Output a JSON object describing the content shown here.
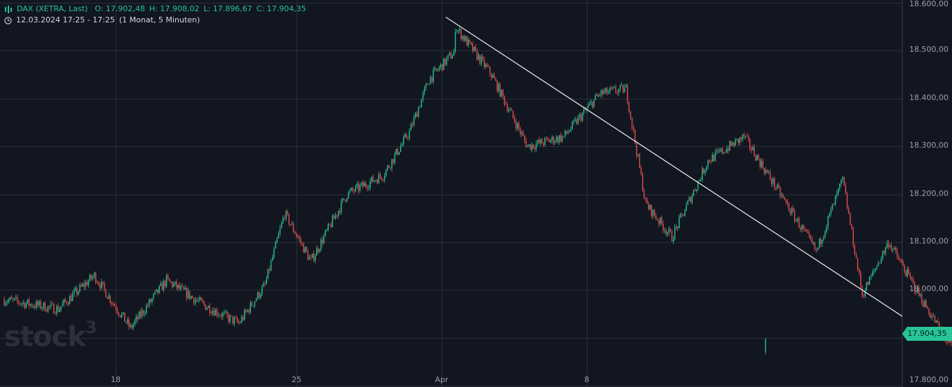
{
  "legend": {
    "instrument": "DAX (XETRA, Last)",
    "open": "O: 17.902,48",
    "high": "H: 17.908,02",
    "low": "L: 17.896,67",
    "close": "C: 17.904,35",
    "time_range": "12.03.2024 17:25 - 17:25",
    "interval": "(1 Monat, 5 Minuten)"
  },
  "watermark": {
    "text": "stock",
    "sup": "3"
  },
  "price_tag": "17.904,35",
  "colors": {
    "background": "#121620",
    "up": "#27c497",
    "down": "#e5504f",
    "grid": "#2a2f3a",
    "trendline": "#e8e8e8"
  },
  "chart_data": {
    "type": "candlestick",
    "x_tick_labels": [
      "18",
      "25",
      "Apr",
      "8"
    ],
    "y_tick_labels": [
      "18.600,00",
      "18.500,00",
      "18.400,00",
      "18.300,00",
      "18.200,00",
      "18.100,00",
      "18.000,00",
      "17.800,00"
    ],
    "ylim": [
      17800,
      18600
    ],
    "last_price": 17904.35,
    "trendline": [
      {
        "date": "2024-04-02",
        "price": 18570
      },
      {
        "date": "2024-04-26",
        "price": 17945
      }
    ],
    "trajectory": [
      {
        "date": "2024-03-13",
        "price": 17980
      },
      {
        "date": "2024-03-14",
        "price": 17960
      },
      {
        "date": "2024-03-15",
        "price": 18030
      },
      {
        "date": "2024-03-18",
        "price": 17920
      },
      {
        "date": "2024-03-19",
        "price": 18020
      },
      {
        "date": "2024-03-20",
        "price": 17970
      },
      {
        "date": "2024-03-21",
        "price": 17930
      },
      {
        "date": "2024-03-22",
        "price": 18010
      },
      {
        "date": "2024-03-22",
        "price": 18160
      },
      {
        "date": "2024-03-25",
        "price": 18060
      },
      {
        "date": "2024-03-26",
        "price": 18200
      },
      {
        "date": "2024-03-27",
        "price": 18240
      },
      {
        "date": "2024-03-28",
        "price": 18330
      },
      {
        "date": "2024-03-28",
        "price": 18440
      },
      {
        "date": "2024-04-01",
        "price": 18500
      },
      {
        "date": "2024-04-02",
        "price": 18550
      },
      {
        "date": "2024-04-03",
        "price": 18450
      },
      {
        "date": "2024-04-04",
        "price": 18300
      },
      {
        "date": "2024-04-05",
        "price": 18320
      },
      {
        "date": "2024-04-08",
        "price": 18410
      },
      {
        "date": "2024-04-09",
        "price": 18420
      },
      {
        "date": "2024-04-09",
        "price": 18180
      },
      {
        "date": "2024-04-10",
        "price": 18110
      },
      {
        "date": "2024-04-11",
        "price": 18270
      },
      {
        "date": "2024-04-12",
        "price": 18320
      },
      {
        "date": "2024-04-15",
        "price": 18200
      },
      {
        "date": "2024-04-16",
        "price": 18080
      },
      {
        "date": "2024-04-17",
        "price": 18230
      },
      {
        "date": "2024-04-17",
        "price": 17990
      },
      {
        "date": "2024-04-18",
        "price": 18100
      },
      {
        "date": "2024-04-19",
        "price": 17970
      },
      {
        "date": "2024-04-22",
        "price": 17880
      },
      {
        "date": "2024-04-22",
        "price": 18160
      },
      {
        "date": "2024-04-23",
        "price": 18130
      },
      {
        "date": "2024-04-24",
        "price": 17930
      },
      {
        "date": "2024-04-25",
        "price": 17870
      },
      {
        "date": "2024-04-25",
        "price": 17904.35
      }
    ]
  }
}
